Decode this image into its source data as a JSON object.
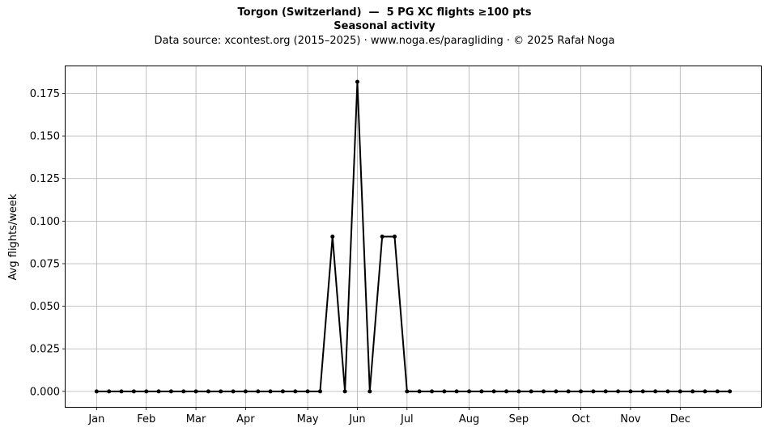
{
  "chart_data": {
    "type": "line",
    "title": "Torgon (Switzerland)  —  5 PG XC flights ≥100 pts",
    "subtitle": "Seasonal activity",
    "source_line": "Data source: xcontest.org (2015–2025)  ·  www.noga.es/paragliding  ·  © 2025 Rafał Noga",
    "xlabel": "",
    "ylabel": "Avg flights/week",
    "xlim": [
      -2.5,
      53.5
    ],
    "ylim": [
      -0.0091,
      0.1909
    ],
    "grid": true,
    "line_color": "#000000",
    "x_ticks": [
      {
        "label": "Jan",
        "x": 0
      },
      {
        "label": "Feb",
        "x": 4
      },
      {
        "label": "Mar",
        "x": 8
      },
      {
        "label": "Apr",
        "x": 12
      },
      {
        "label": "May",
        "x": 17
      },
      {
        "label": "Jun",
        "x": 21
      },
      {
        "label": "Jul",
        "x": 25
      },
      {
        "label": "Aug",
        "x": 30
      },
      {
        "label": "Sep",
        "x": 34
      },
      {
        "label": "Oct",
        "x": 39
      },
      {
        "label": "Nov",
        "x": 43
      },
      {
        "label": "Dec",
        "x": 47
      }
    ],
    "y_ticks": [
      "0.000",
      "0.025",
      "0.050",
      "0.075",
      "0.100",
      "0.125",
      "0.150",
      "0.175"
    ],
    "series": [
      {
        "values": [
          0,
          0,
          0,
          0,
          0,
          0,
          0,
          0,
          0,
          0,
          0,
          0,
          0,
          0,
          0,
          0,
          0,
          0,
          0,
          0.0909,
          0,
          0.1818,
          0,
          0.0909,
          0.0909,
          0,
          0,
          0,
          0,
          0,
          0,
          0,
          0,
          0,
          0,
          0,
          0,
          0,
          0,
          0,
          0,
          0,
          0,
          0,
          0,
          0,
          0,
          0,
          0,
          0,
          0,
          0
        ]
      }
    ]
  }
}
